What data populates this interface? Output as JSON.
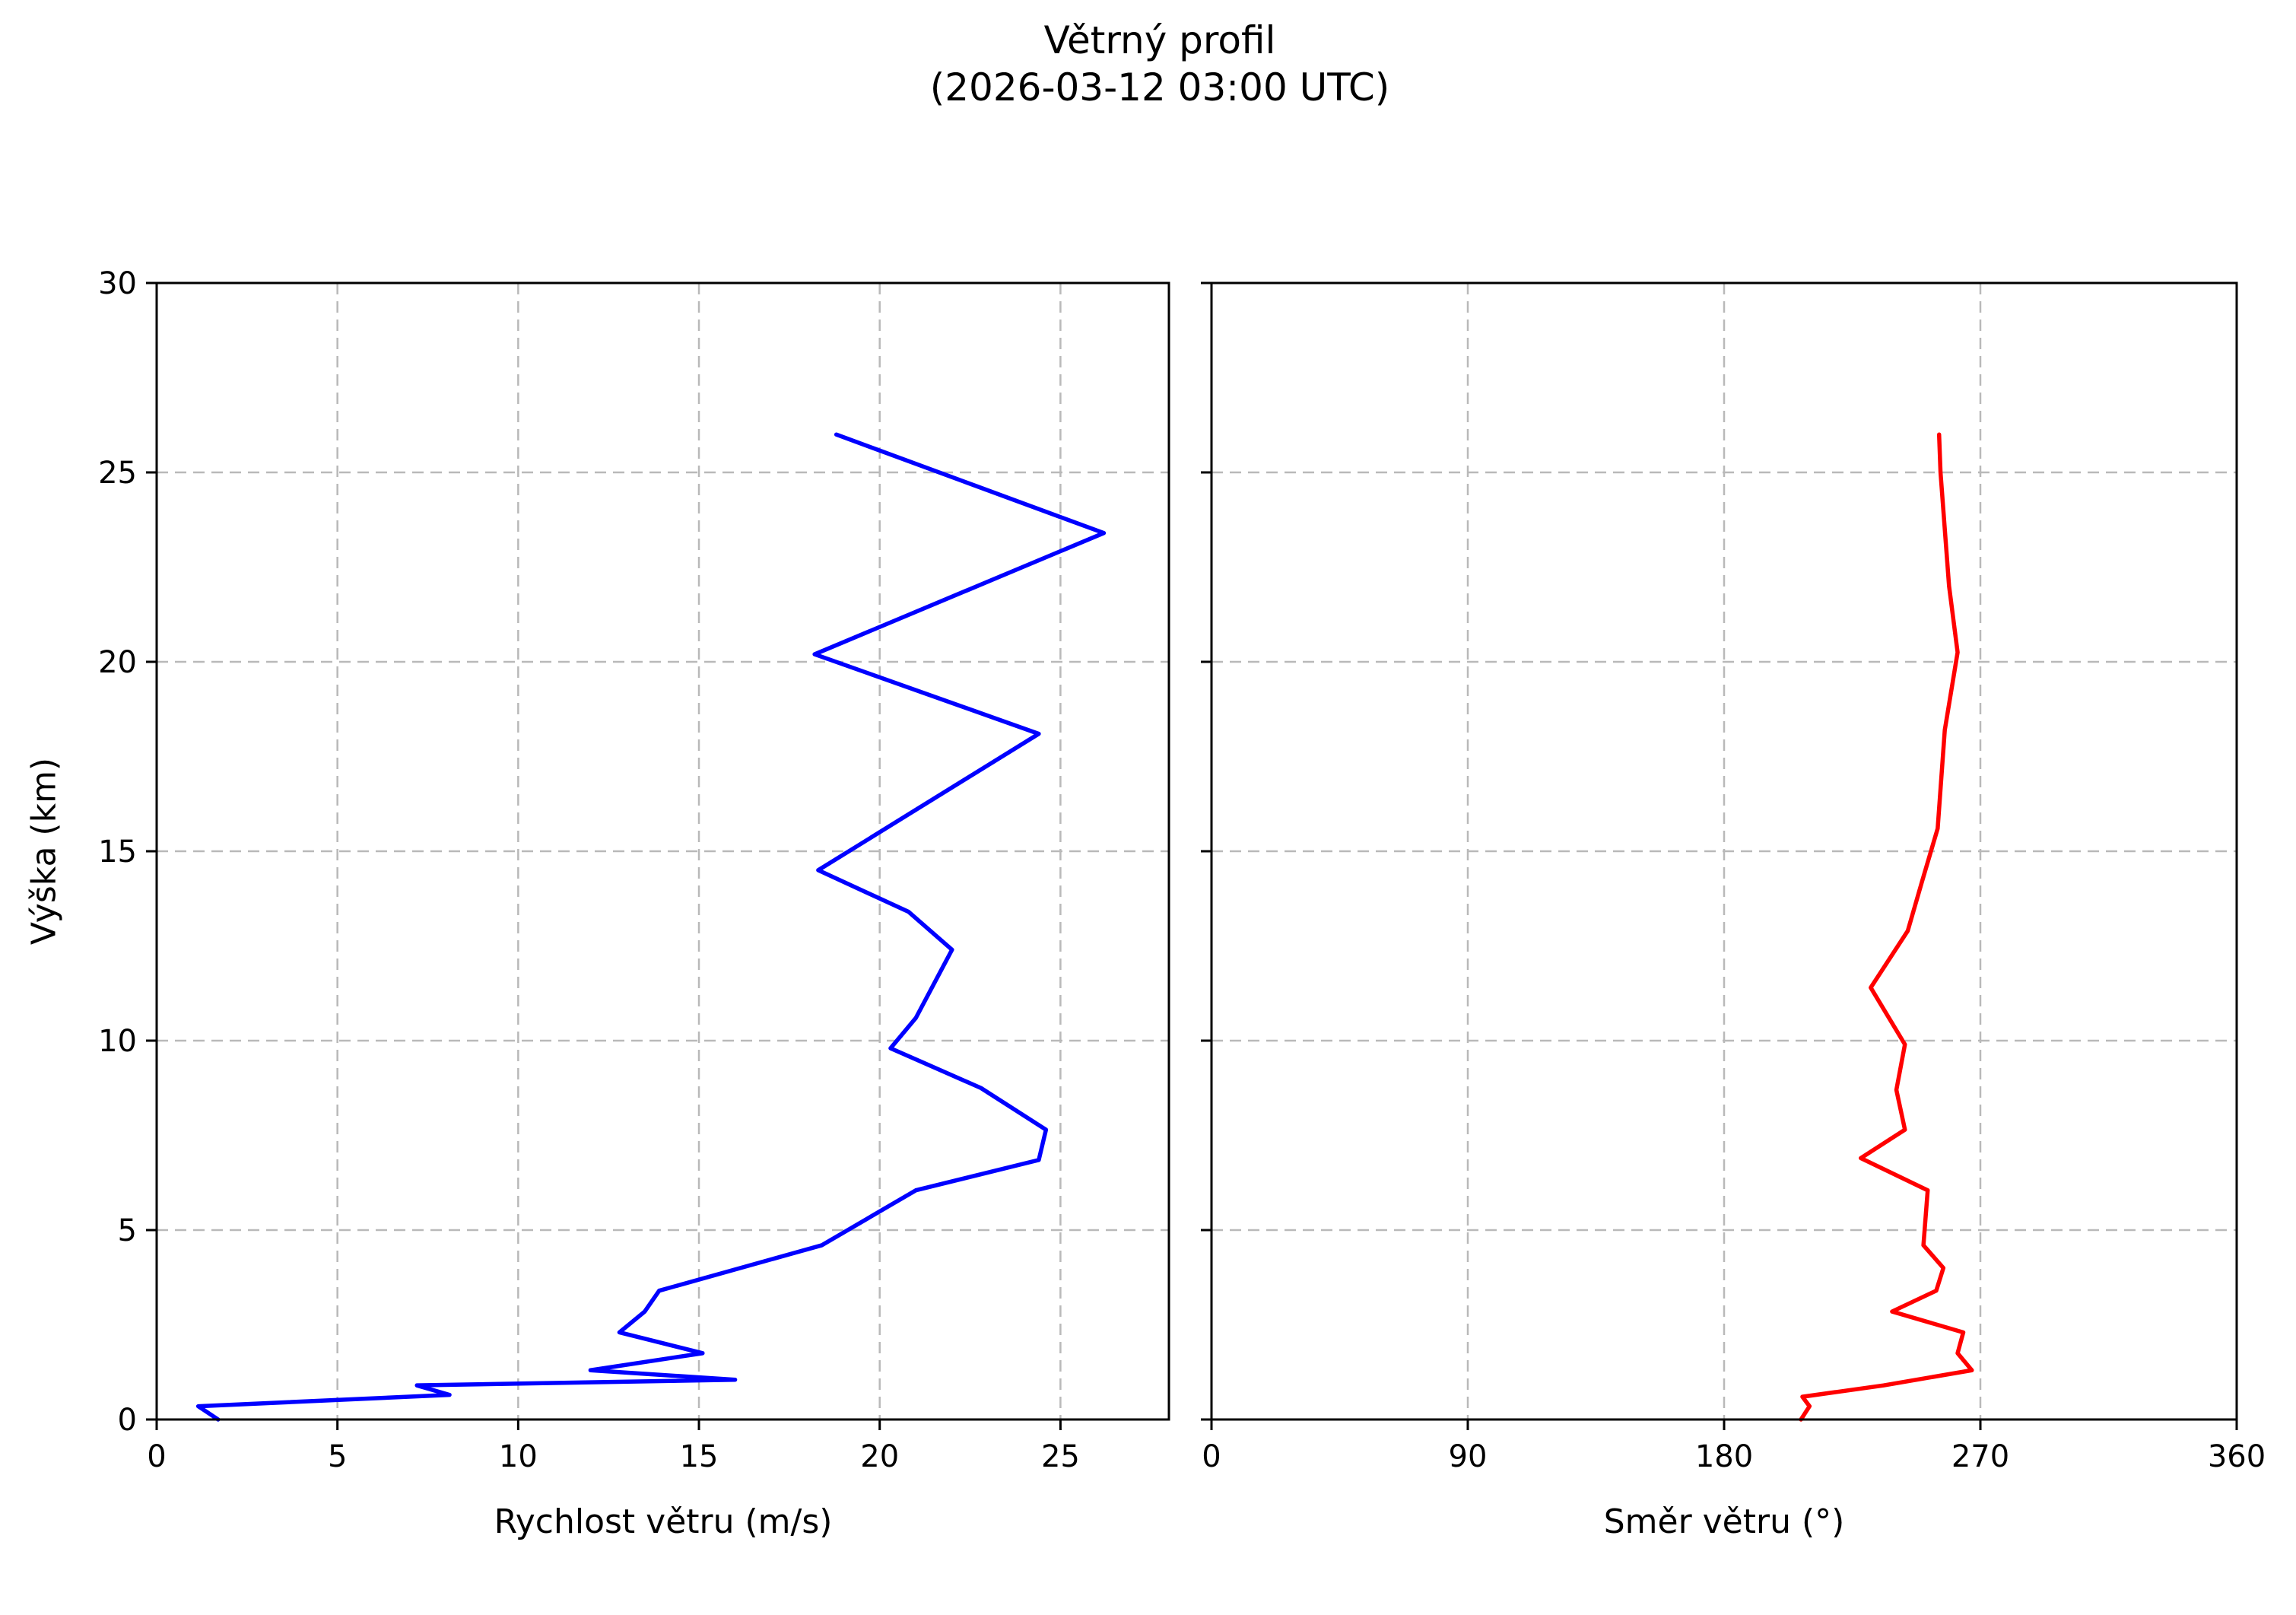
{
  "title": {
    "line1": "Větrný profil",
    "line2": "(2026-03-12 03:00 UTC)"
  },
  "colors": {
    "background": "#ffffff",
    "grid": "#b9b9b9",
    "spine": "#000000",
    "text": "#000000",
    "speed_line": "#0000ff",
    "direction_line": "#ff0000"
  },
  "chart_data": [
    {
      "type": "line",
      "panel": "wind-speed",
      "title": "Větrný profil (2026-03-12 03:00 UTC)",
      "xlabel": "Rychlost větru (m/s)",
      "ylabel": "Výška (km)",
      "xlim": [
        0,
        28
      ],
      "ylim": [
        0,
        30
      ],
      "xticks": [
        0,
        5,
        10,
        15,
        20,
        25
      ],
      "yticks": [
        0,
        5,
        10,
        15,
        20,
        25,
        30
      ],
      "grid": true,
      "legend_position": "none",
      "series": [
        {
          "name": "Rychlost větru",
          "color": "#0000ff",
          "x": [
            1.7,
            1.15,
            8.1,
            7.2,
            16.0,
            12.0,
            15.1,
            12.8,
            13.5,
            13.9,
            18.4,
            21.0,
            24.4,
            24.6,
            22.8,
            20.3,
            21.0,
            22.0,
            20.8,
            18.3,
            24.4,
            18.2,
            26.2,
            18.8
          ],
          "y": [
            0.0,
            0.35,
            0.65,
            0.9,
            1.05,
            1.3,
            1.75,
            2.3,
            2.85,
            3.4,
            4.6,
            6.05,
            6.85,
            7.65,
            8.75,
            9.8,
            10.6,
            12.4,
            13.4,
            14.5,
            18.1,
            20.2,
            23.4,
            26.0
          ]
        }
      ]
    },
    {
      "type": "line",
      "panel": "wind-direction",
      "title": "Větrný profil (2026-03-12 03:00 UTC)",
      "xlabel": "Směr větru (°)",
      "ylabel": "",
      "xlim": [
        0,
        360
      ],
      "ylim": [
        0,
        30
      ],
      "xticks": [
        0,
        90,
        180,
        270,
        360
      ],
      "yticks": [
        0,
        5,
        10,
        15,
        20,
        25,
        30
      ],
      "grid": true,
      "legend_position": "none",
      "series": [
        {
          "name": "Směr větru",
          "color": "#ff0000",
          "x": [
            207,
            210,
            207.5,
            236,
            267,
            262,
            264,
            239,
            254.5,
            257,
            250,
            251.5,
            228,
            243.5,
            240.5,
            243.5,
            231.5,
            244.5,
            249.5,
            255,
            257.5,
            262,
            259,
            256,
            255.5
          ],
          "y": [
            0.0,
            0.35,
            0.6,
            0.9,
            1.3,
            1.75,
            2.3,
            2.85,
            3.4,
            4.0,
            4.6,
            6.05,
            6.9,
            7.65,
            8.7,
            9.9,
            11.4,
            12.9,
            14.2,
            15.6,
            18.2,
            20.25,
            22.0,
            25.0,
            26.0
          ]
        }
      ]
    }
  ]
}
